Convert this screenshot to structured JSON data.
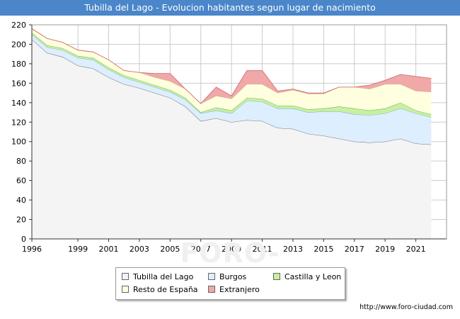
{
  "title": "Tubilla del Lago - Evolucion habitantes segun lugar de nacimiento",
  "footer_url": "http://www.foro-ciudad.com",
  "watermark": "FORO-CIUDAD.COM",
  "chart_data": {
    "type": "area",
    "stacked": true,
    "x": [
      1996,
      1997,
      1998,
      1999,
      2000,
      2001,
      2002,
      2003,
      2004,
      2005,
      2006,
      2007,
      2008,
      2009,
      2010,
      2011,
      2012,
      2013,
      2014,
      2015,
      2016,
      2017,
      2018,
      2019,
      2020,
      2021,
      2022
    ],
    "xticks": [
      "1996",
      "1999",
      "2001",
      "2003",
      "2005",
      "2007",
      "2009",
      "2011",
      "2013",
      "2015",
      "2017",
      "2019",
      "2021"
    ],
    "xtick_values": [
      1996,
      1999,
      2001,
      2003,
      2005,
      2007,
      2009,
      2011,
      2013,
      2015,
      2017,
      2019,
      2021
    ],
    "yticks": [
      "0",
      "20",
      "40",
      "60",
      "80",
      "100",
      "120",
      "140",
      "160",
      "180",
      "200",
      "220"
    ],
    "ylim": [
      0,
      220
    ],
    "xlim": [
      1996,
      2023
    ],
    "grid": true,
    "series": [
      {
        "name": "Tubilla del Lago",
        "color": "#f4f4f4",
        "line": "#555555",
        "values": [
          205,
          191,
          187,
          178,
          175,
          166,
          159,
          155,
          150,
          145,
          136,
          121,
          124,
          120,
          122,
          121,
          114,
          113,
          108,
          106,
          103,
          100,
          99,
          100,
          103,
          98,
          97
        ]
      },
      {
        "name": "Burgos",
        "color": "#ddeeff",
        "line": "#7aa4d8",
        "values": [
          5,
          6,
          7,
          8,
          9,
          8,
          7,
          6,
          6,
          6,
          7,
          8,
          8,
          9,
          20,
          20,
          20,
          21,
          22,
          25,
          28,
          28,
          28,
          29,
          31,
          31,
          28
        ]
      },
      {
        "name": "Castilla y Leon",
        "color": "#c8f0a0",
        "line": "#55aa33",
        "values": [
          2,
          2,
          2,
          2,
          2,
          2,
          2,
          2,
          2,
          2,
          2,
          1,
          3,
          3,
          3,
          3,
          3,
          3,
          3,
          3,
          5,
          6,
          5,
          5,
          6,
          3,
          3
        ]
      },
      {
        "name": "Resto de España",
        "color": "#ffffe0",
        "line": "#c8c88c",
        "values": [
          4,
          7,
          6,
          6,
          6,
          8,
          5,
          8,
          8,
          9,
          9,
          9,
          12,
          12,
          14,
          15,
          13,
          16,
          16,
          15,
          20,
          22,
          22,
          25,
          19,
          20,
          23
        ]
      },
      {
        "name": "Extranjero",
        "color": "#f0a8a8",
        "line": "#cc6666",
        "values": [
          0,
          0,
          0,
          0,
          0,
          0,
          0,
          0,
          4,
          8,
          0,
          0,
          9,
          3,
          14,
          14,
          2,
          1,
          1,
          1,
          0,
          0,
          4,
          4,
          10,
          15,
          14
        ]
      }
    ],
    "legend": [
      "Tubilla del Lago",
      "Burgos",
      "Castilla y Leon",
      "Resto de España",
      "Extranjero"
    ]
  }
}
